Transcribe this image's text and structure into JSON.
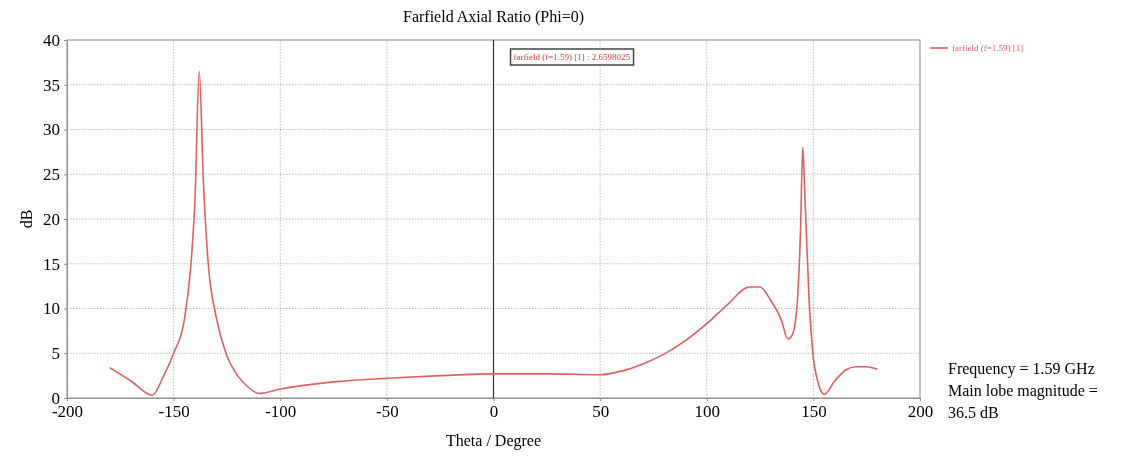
{
  "chart_data": {
    "type": "line",
    "title": "Farfield Axial Ratio (Phi=0)",
    "xlabel": "Theta / Degree",
    "ylabel": "dB",
    "xlim": [
      -200,
      200
    ],
    "xticks": [
      -200,
      -150,
      -100,
      -50,
      0,
      50,
      100,
      150,
      200
    ],
    "ylim": [
      0,
      40
    ],
    "yticks": [
      0,
      5,
      10,
      15,
      20,
      25,
      30,
      35,
      40
    ],
    "grid": true,
    "legend": "top right",
    "line_style": "solid",
    "marker": "none",
    "series": [
      {
        "name": "farfield (f=1.59) [1]",
        "color": "#e06060",
        "x": [
          -180,
          -170,
          -160,
          -155,
          -150,
          -145,
          -142,
          -140,
          -138,
          -136,
          -134,
          -130,
          -125,
          -120,
          -115,
          -110,
          -100,
          -75,
          -50,
          -25,
          0,
          25,
          50,
          60,
          70,
          80,
          90,
          100,
          110,
          120,
          125,
          130,
          135,
          138,
          140,
          142,
          144,
          145,
          146,
          148,
          150,
          152,
          154,
          155,
          160,
          165,
          170,
          175,
          180
        ],
        "values": [
          3.4,
          1.9,
          0.3,
          2.3,
          5,
          8.7,
          14.6,
          22,
          36.5,
          24,
          15.7,
          9,
          4.7,
          2.5,
          1.2,
          0.5,
          1,
          1.8,
          2.2,
          2.5,
          2.7,
          2.7,
          2.6,
          3,
          3.8,
          4.9,
          6.4,
          8.3,
          10.5,
          12.4,
          12.4,
          10.9,
          8.7,
          6.6,
          7,
          9.4,
          19,
          28,
          22.8,
          10.9,
          4.5,
          1.9,
          0.6,
          0.4,
          1.9,
          3.1,
          3.5,
          3.5,
          3.2
        ]
      }
    ],
    "ref_lines": [
      {
        "axis": "x",
        "value": 0,
        "color": "#333333"
      }
    ],
    "annotations": [
      "farfield (f=1.59) [1] : 2.6598025",
      "Frequency = 1.59 GHz Main lobe magnitude = 36.5 dB"
    ]
  }
}
